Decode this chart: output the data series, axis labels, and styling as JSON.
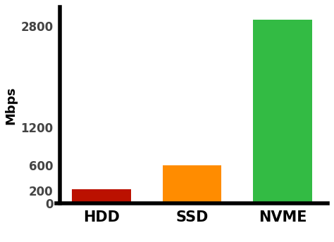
{
  "categories": [
    "HDD",
    "SSD",
    "NVME"
  ],
  "values": [
    220,
    600,
    2900
  ],
  "bar_colors": [
    "#bb1100",
    "#ff8c00",
    "#33bb44"
  ],
  "ylabel": "Mbps",
  "ylim": [
    0,
    3100
  ],
  "yticks": [
    0,
    200,
    600,
    1200,
    2800
  ],
  "background_color": "#ffffff",
  "bar_width": 0.65,
  "xlabel_fontsize": 15,
  "ylabel_fontsize": 13,
  "tick_fontsize": 12,
  "axis_linewidth": 4.0,
  "tick_label_color": "#444444"
}
